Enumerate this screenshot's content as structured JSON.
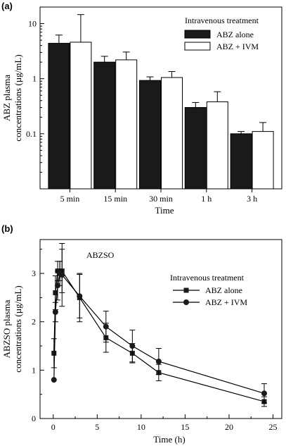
{
  "chart_data": [
    {
      "type": "bar",
      "panel_label": "(a)",
      "categories": [
        "5 min",
        "15 min",
        "30 min",
        "1 h",
        "3 h"
      ],
      "series": [
        {
          "name": "ABZ alone",
          "color": "#1a1a1a",
          "values": [
            4.4,
            2.0,
            0.93,
            0.3,
            0.1
          ],
          "errors": [
            1.8,
            0.55,
            0.15,
            0.07,
            0.01
          ]
        },
        {
          "name": "ABZ + IVM",
          "color": "#ffffff",
          "values": [
            4.6,
            2.2,
            1.05,
            0.38,
            0.11
          ],
          "errors": [
            10.0,
            0.85,
            0.3,
            0.2,
            0.05
          ]
        }
      ],
      "xlabel": "Time",
      "ylabel": "ABZ plasma concentrations (µg/mL)",
      "ylabel_lines": [
        "ABZ plasma",
        "concentrations (µg/mL)"
      ],
      "yscale": "log",
      "ylim": [
        0.01,
        20
      ],
      "yticks": [
        0.1,
        1,
        10
      ],
      "ytick_labels": [
        "0.1",
        "1",
        "10"
      ],
      "legend_title": "Intravenous treatment",
      "legend_position": "top-right",
      "grid": false
    },
    {
      "type": "line",
      "panel_label": "(b)",
      "annotation": "ABZSO",
      "x": [
        0.08,
        0.25,
        0.5,
        0.75,
        1,
        3,
        6,
        9,
        12,
        24
      ],
      "series": [
        {
          "name": "ABZ alone",
          "marker": "square",
          "values": [
            1.35,
            2.6,
            3.05,
            3.05,
            3.05,
            2.5,
            1.67,
            1.35,
            0.95,
            0.35
          ],
          "errors": [
            0.3,
            0.35,
            0.2,
            0.2,
            0.45,
            0.5,
            0.3,
            0.2,
            0.17,
            0.1
          ]
        },
        {
          "name": "ABZ + IVM",
          "marker": "circle",
          "values": [
            0.8,
            2.2,
            2.75,
            3.0,
            2.97,
            2.53,
            1.9,
            1.5,
            1.18,
            0.52
          ],
          "errors": [
            0,
            0.2,
            0.3,
            0.25,
            0.65,
            0.45,
            0.32,
            0.33,
            0.27,
            0.2
          ]
        }
      ],
      "xlabel": "Time (h)",
      "ylabel": "ABZSO plasma concentrations (µg/mL)",
      "ylabel_lines": [
        "ABZSO plasma",
        "concentrations (µg/mL)"
      ],
      "xlim": [
        -1.5,
        26
      ],
      "ylim": [
        0,
        3.7
      ],
      "xticks": [
        0,
        5,
        10,
        15,
        20,
        25
      ],
      "yticks": [
        0,
        1,
        2,
        3
      ],
      "legend_title": "Intravenous treatment",
      "legend_position": "top-right",
      "grid": false
    }
  ]
}
